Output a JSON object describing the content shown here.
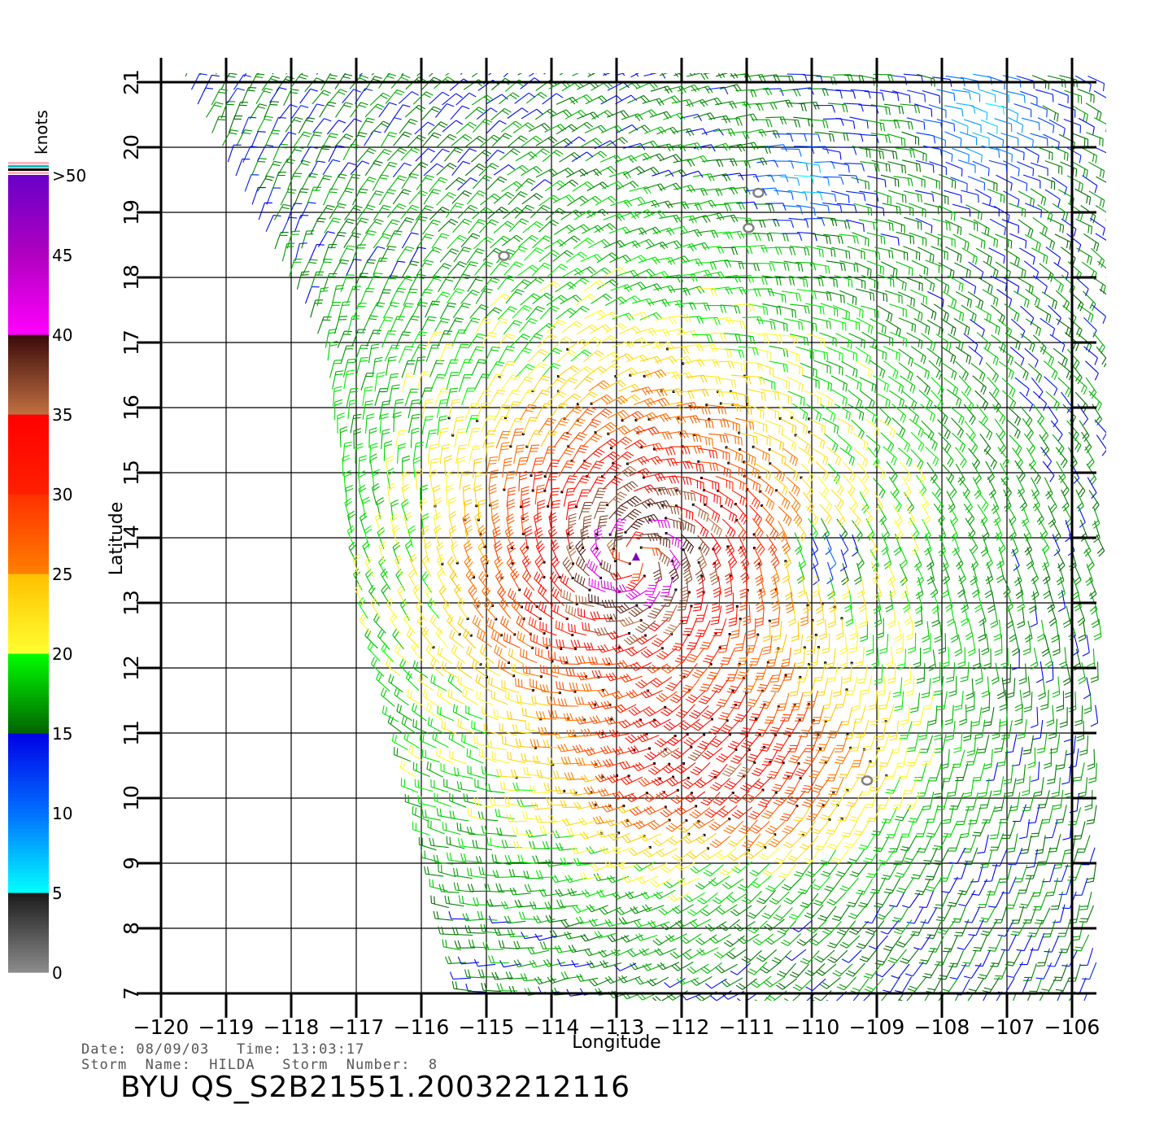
{
  "colorbar": {
    "title": "knots",
    "stops": [
      {
        "label": "0",
        "value": 0
      },
      {
        "label": "5",
        "value": 5
      },
      {
        "label": "10",
        "value": 10
      },
      {
        "label": "15",
        "value": 15
      },
      {
        "label": "20",
        "value": 20
      },
      {
        "label": "25",
        "value": 25
      },
      {
        "label": "30",
        "value": 30
      },
      {
        "label": "35",
        "value": 35
      },
      {
        "label": "40",
        "value": 40
      },
      {
        "label": "45",
        "value": 45
      },
      {
        "label": ">50",
        "value": 50
      }
    ],
    "gradient": [
      {
        "from": 0,
        "to": 5,
        "colors": [
          "#8c8c8c",
          "#1a1a1a"
        ]
      },
      {
        "from": 5,
        "to": 10,
        "colors": [
          "#00ffff",
          "#0070ff"
        ]
      },
      {
        "from": 10,
        "to": 15,
        "colors": [
          "#0070ff",
          "#0000e6"
        ]
      },
      {
        "from": 15,
        "to": 20,
        "colors": [
          "#006400",
          "#00ff00"
        ]
      },
      {
        "from": 20,
        "to": 25,
        "colors": [
          "#ffff30",
          "#ffc000"
        ]
      },
      {
        "from": 25,
        "to": 30,
        "colors": [
          "#ff8000",
          "#ff3000"
        ]
      },
      {
        "from": 30,
        "to": 35,
        "colors": [
          "#ff2000",
          "#ff0000"
        ]
      },
      {
        "from": 35,
        "to": 40,
        "colors": [
          "#c07040",
          "#3a0a0a"
        ]
      },
      {
        "from": 40,
        "to": 45,
        "colors": [
          "#ff00ff",
          "#b000c0"
        ]
      },
      {
        "from": 45,
        "to": 50,
        "colors": [
          "#b000c0",
          "#6a00c8"
        ]
      }
    ]
  },
  "axes": {
    "xlabel": "Longitude",
    "ylabel": "Latitude",
    "xlim": [
      -120,
      -106
    ],
    "ylim": [
      7,
      21
    ],
    "xticks": [
      "−120",
      "−119",
      "−118",
      "−117",
      "−116",
      "−115",
      "−114",
      "−113",
      "−112",
      "−111",
      "−110",
      "−109",
      "−108",
      "−107",
      "−106"
    ],
    "yticks": [
      "7",
      "8",
      "9",
      "10",
      "11",
      "12",
      "13",
      "14",
      "15",
      "16",
      "17",
      "18",
      "19",
      "20",
      "21"
    ]
  },
  "info": {
    "date_line": "Date: 08/09/03   Time: 13:03:17",
    "storm_line": "Storm  Name:  HILDA   Storm  Number:  8",
    "file_title": "BYU  QS_S2B21551.20032212116"
  },
  "chart_data": {
    "type": "wind_barb_map",
    "storm_name": "HILDA",
    "storm_number": 8,
    "date": "08/09/03",
    "time": "13:03:17",
    "units": "knots",
    "storm_center": {
      "lon": -112.7,
      "lat": 13.7,
      "marker_color": "#8000c0"
    },
    "swath": {
      "west_edge": [
        [
          -119.6,
          21.0
        ],
        [
          -117.5,
          17.0
        ],
        [
          -116.9,
          13.0
        ],
        [
          -116.0,
          10.0
        ],
        [
          -115.2,
          7.0
        ]
      ],
      "east_edge_lon": -105.6,
      "lat_range": [
        6.9,
        21.1
      ]
    },
    "wind_field": {
      "circulation_center": {
        "lon": -112.7,
        "lat": 13.7
      },
      "max_speed_kt": 42,
      "radius_of_max_wind_deg": 0.5,
      "decay_scale_deg": 4.0,
      "ambient_speed_kt": 11,
      "sampling_deg": 0.22
    },
    "calm_regions": [
      {
        "lon": -110.3,
        "lat": 19.5,
        "radius_deg": 0.5
      },
      {
        "lon": -109.8,
        "lat": 13.9,
        "radius_deg": 0.35
      },
      {
        "lon": -107.5,
        "lat": 20.5,
        "radius_deg": 0.6
      }
    ],
    "islands": [
      {
        "lon": -114.73,
        "lat": 18.33
      },
      {
        "lon": -110.97,
        "lat": 18.76
      },
      {
        "lon": -110.82,
        "lat": 19.3
      },
      {
        "lon": -109.15,
        "lat": 10.27
      }
    ]
  }
}
